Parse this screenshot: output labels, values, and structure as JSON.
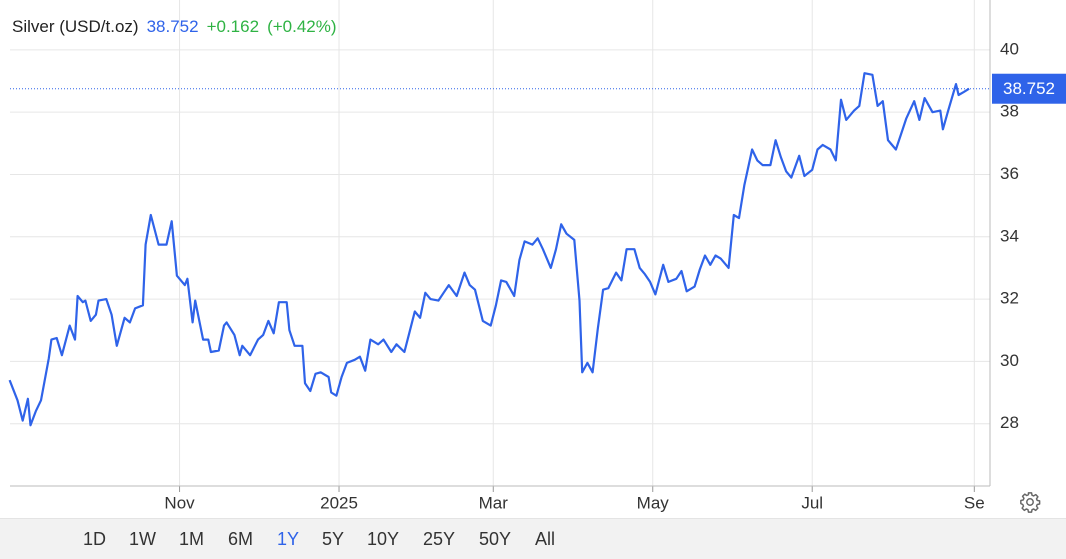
{
  "header": {
    "name": "Silver (USD/t.oz)",
    "change": "+0.162",
    "change_pct": "(+0.42%)"
  },
  "chart_data": {
    "type": "line",
    "last": 38.752,
    "x": [
      1,
      4,
      6,
      8,
      9,
      11,
      13,
      16,
      17,
      19,
      21,
      24,
      26,
      27,
      29,
      30,
      32,
      34,
      35,
      38,
      40,
      42,
      45,
      47,
      49,
      52,
      53,
      55,
      58,
      61,
      63,
      65,
      68,
      69,
      71,
      72,
      75,
      77,
      78,
      81,
      83,
      84,
      87,
      89,
      90,
      93,
      96,
      98,
      100,
      102,
      104,
      107,
      108,
      110,
      113,
      114,
      116,
      118,
      120,
      123,
      124,
      126,
      128,
      130,
      133,
      135,
      137,
      139,
      142,
      144,
      147,
      149,
      152,
      154,
      156,
      158,
      160,
      162,
      165,
      167,
      169,
      172,
      175,
      177,
      179,
      182,
      185,
      187,
      189,
      191,
      194,
      196,
      198,
      201,
      203,
      205,
      208,
      210,
      212,
      214,
      217,
      219,
      220,
      222,
      224,
      226,
      228,
      230,
      233,
      235,
      237,
      240,
      242,
      244,
      246,
      248,
      251,
      253,
      256,
      258,
      260,
      263,
      265,
      267,
      269,
      271,
      273,
      276,
      278,
      280,
      282,
      285,
      287,
      289,
      292,
      294,
      296,
      298,
      300,
      303,
      305,
      308,
      310,
      312,
      315,
      317,
      319,
      321,
      324,
      326,
      328,
      331,
      333,
      335,
      337,
      340,
      342,
      344,
      347,
      349,
      351,
      354,
      357,
      358,
      360,
      363,
      364,
      366,
      368
    ],
    "series": [
      {
        "color": "#2f63e9",
        "values": [
          29.4,
          28.75,
          28.1,
          28.8,
          27.95,
          28.4,
          28.75,
          30.1,
          30.7,
          30.75,
          30.2,
          31.15,
          30.7,
          32.1,
          31.9,
          31.95,
          31.3,
          31.5,
          31.95,
          32.0,
          31.5,
          30.5,
          31.4,
          31.25,
          31.7,
          31.8,
          33.75,
          34.7,
          33.75,
          33.75,
          34.5,
          32.75,
          32.45,
          32.65,
          31.25,
          31.95,
          30.7,
          30.7,
          30.3,
          30.35,
          31.15,
          31.25,
          30.85,
          30.2,
          30.5,
          30.2,
          30.7,
          30.85,
          31.3,
          30.9,
          31.9,
          31.9,
          31.0,
          30.5,
          30.5,
          29.3,
          29.05,
          29.6,
          29.65,
          29.5,
          29.0,
          28.9,
          29.5,
          29.95,
          30.05,
          30.15,
          29.7,
          30.7,
          30.55,
          30.7,
          30.3,
          30.55,
          30.3,
          30.95,
          31.6,
          31.4,
          32.2,
          32.0,
          31.95,
          32.2,
          32.45,
          32.1,
          32.85,
          32.45,
          32.3,
          31.3,
          31.15,
          31.8,
          32.6,
          32.55,
          32.1,
          33.25,
          33.85,
          33.75,
          33.95,
          33.6,
          33.0,
          33.6,
          34.4,
          34.1,
          33.9,
          31.95,
          29.65,
          29.95,
          29.65,
          31.05,
          32.3,
          32.35,
          32.85,
          32.6,
          33.6,
          33.6,
          33.0,
          32.8,
          32.55,
          32.15,
          33.1,
          32.55,
          32.65,
          32.9,
          32.25,
          32.4,
          32.95,
          33.4,
          33.1,
          33.4,
          33.3,
          33.0,
          34.7,
          34.6,
          35.65,
          36.8,
          36.45,
          36.3,
          36.3,
          37.1,
          36.55,
          36.1,
          35.9,
          36.6,
          35.95,
          36.15,
          36.8,
          36.95,
          36.8,
          36.45,
          38.4,
          37.75,
          38.05,
          38.2,
          39.25,
          39.2,
          38.2,
          38.35,
          37.1,
          36.8,
          37.3,
          37.8,
          38.35,
          37.75,
          38.45,
          38.0,
          38.05,
          37.45,
          38.05,
          38.9,
          38.55,
          38.65,
          38.752
        ]
      }
    ],
    "xlim": [
      0,
      376
    ],
    "xticks": [
      {
        "value": 66,
        "label": "Nov"
      },
      {
        "value": 127,
        "label": "2025"
      },
      {
        "value": 186,
        "label": "Mar"
      },
      {
        "value": 247,
        "label": "May"
      },
      {
        "value": 308,
        "label": "Jul"
      },
      {
        "value": 370,
        "label": "Se"
      }
    ],
    "ylim": [
      26,
      41.6
    ],
    "yticks": [
      28,
      30,
      32,
      34,
      36,
      38,
      40
    ],
    "grid": true
  },
  "ranges": [
    "1D",
    "1W",
    "1M",
    "6M",
    "1Y",
    "5Y",
    "10Y",
    "25Y",
    "50Y",
    "All"
  ]
}
